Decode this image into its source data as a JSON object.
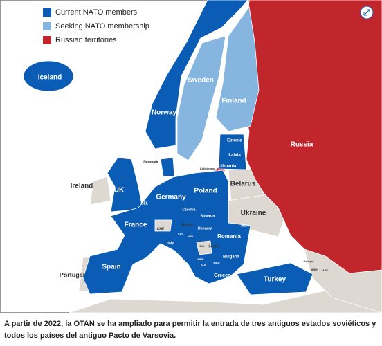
{
  "legend": [
    {
      "label": "Current NATO members",
      "color": "#0b5cb5"
    },
    {
      "label": "Seeking NATO membership",
      "color": "#86b6e0"
    },
    {
      "label": "Russian territories",
      "color": "#c1262c"
    }
  ],
  "labels": [
    "Iceland",
    "Sweden",
    "Finland",
    "Norway",
    "Russia",
    "Estonia",
    "Latvia",
    "Lithuania",
    "Denmark",
    "Kaliningrad",
    "Ireland",
    "UK",
    "Belarus",
    "Poland",
    "Germany",
    "NL",
    "BEL",
    "Czechia",
    "Slovakia",
    "Ukraine",
    "France",
    "CHE",
    "Austria",
    "Hungary",
    "MDA",
    "Romania",
    "Italy",
    "SVN",
    "HRV",
    "BIH",
    "Serbia",
    "Bulgaria",
    "MNE",
    "ALB",
    "MKD",
    "Greece",
    "Spain",
    "Portugal",
    "Turkey",
    "Georgia",
    "ARM",
    "AZE"
  ],
  "caption": "A partir de 2022, la OTAN se ha ampliado para permitir la entrada de tres antiguos estados soviéticos y todos los países del antiguo Pacto de Varsovia."
}
